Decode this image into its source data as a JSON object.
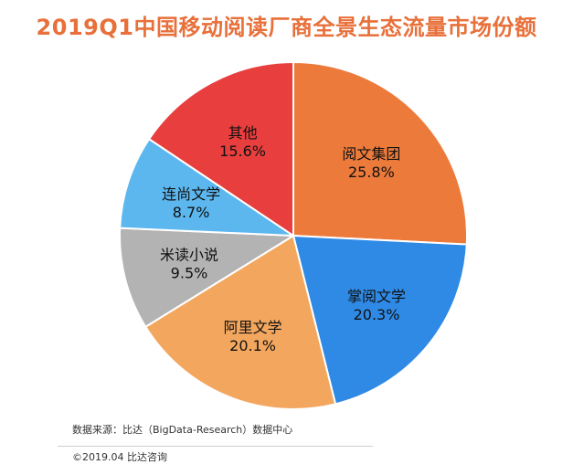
{
  "chart_data": {
    "type": "pie",
    "title": "2019Q1中国移动阅读厂商全景生态流量市场份额",
    "unit": "%",
    "slices": [
      {
        "label": "阅文集团",
        "value": 25.8,
        "display": "25.8%",
        "color": "#ec7a3b"
      },
      {
        "label": "掌阅文学",
        "value": 20.3,
        "display": "20.3%",
        "color": "#2f8ae6"
      },
      {
        "label": "阿里文学",
        "value": 20.1,
        "display": "20.1%",
        "color": "#f3a75e"
      },
      {
        "label": "米读小说",
        "value": 9.5,
        "display": "9.5%",
        "color": "#b3b3b3"
      },
      {
        "label": "连尚文学",
        "value": 8.7,
        "display": "8.7%",
        "color": "#5cb7ef"
      },
      {
        "label": "其他",
        "value": 15.6,
        "display": "15.6%",
        "color": "#e83e3e"
      }
    ]
  },
  "footer": {
    "source": "数据来源：比达（BigData-Research）数据中心",
    "copyright": "©2019.04 比达咨询"
  }
}
